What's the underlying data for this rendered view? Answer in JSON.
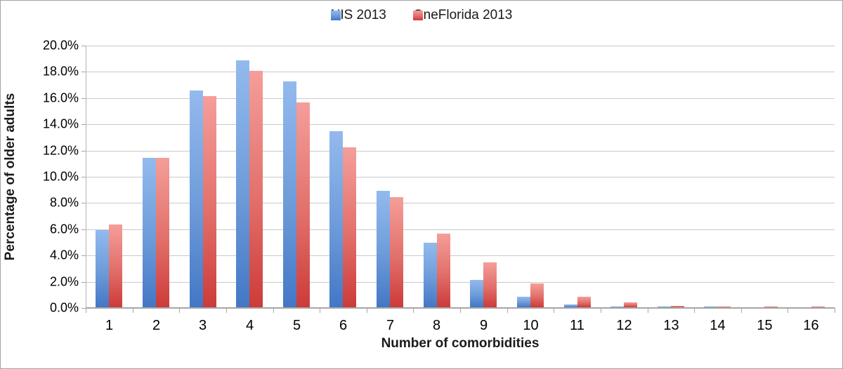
{
  "chart_data": {
    "type": "bar",
    "title": "",
    "xlabel": "Number of comorbidities",
    "ylabel": "Percentage of older adults",
    "categories": [
      "1",
      "2",
      "3",
      "4",
      "5",
      "6",
      "7",
      "8",
      "9",
      "10",
      "11",
      "12",
      "13",
      "14",
      "15",
      "16"
    ],
    "series": [
      {
        "name": "NIS 2013",
        "color_top": "#93baee",
        "color_bottom": "#4377c5",
        "values": [
          5.9,
          11.4,
          16.5,
          18.8,
          17.2,
          13.4,
          8.9,
          4.9,
          2.1,
          0.8,
          0.2,
          0.05,
          0.03,
          0.02,
          0.0,
          0.0
        ]
      },
      {
        "name": "OneFlorida 2013",
        "color_top": "#f59e9a",
        "color_bottom": "#cc3b39",
        "values": [
          6.3,
          11.4,
          16.1,
          18.0,
          15.6,
          12.2,
          8.4,
          5.6,
          3.4,
          1.8,
          0.8,
          0.35,
          0.12,
          0.06,
          0.02,
          0.01
        ]
      }
    ],
    "ylim": [
      0,
      20
    ],
    "ytick_step": 2,
    "yticks": [
      "0.0%",
      "2.0%",
      "4.0%",
      "6.0%",
      "8.0%",
      "10.0%",
      "12.0%",
      "14.0%",
      "16.0%",
      "18.0%",
      "20.0%"
    ],
    "grid": true,
    "legend_position": "top-center",
    "gridline_color": "#c9c9c9",
    "axis_line_color": "#a6a6a6"
  }
}
